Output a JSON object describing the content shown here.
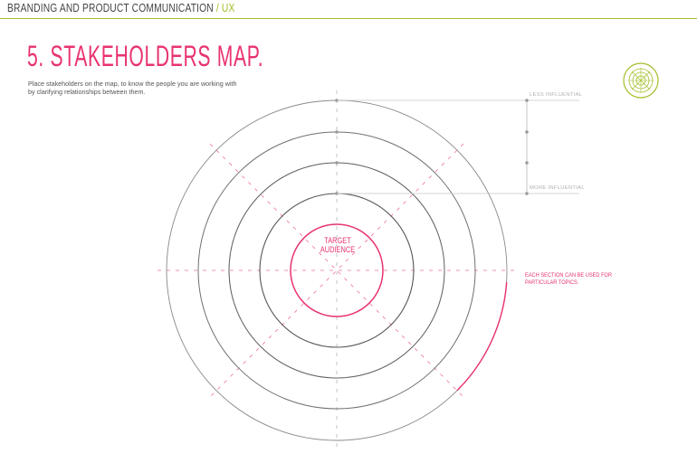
{
  "header": {
    "course": "BRANDING AND PRODUCT COMMUNICATION",
    "separator": " / ",
    "section": "UX"
  },
  "page": {
    "title": "5. STAKEHOLDERS MAP.",
    "intro_lines": [
      "Place stakeholders on the map, to know the people you are working with",
      "by clarifying relationships between them."
    ]
  },
  "diagram": {
    "center_label_lines": [
      "TARGET",
      "AUDIENCE"
    ],
    "less_influential": "LESS INFLUENTIAL",
    "more_influential": "MORE INFLUENTIAL",
    "topics_note_lines": [
      "EACH SECTION CAN BE USED FOR",
      "PARTICULAR TOPICS."
    ],
    "colors": {
      "accent_pink": "#e8336f",
      "accent_green": "#a3bf2a",
      "ring_gray": "#6e6e6e",
      "guide_gray": "#b5b5b5"
    }
  }
}
